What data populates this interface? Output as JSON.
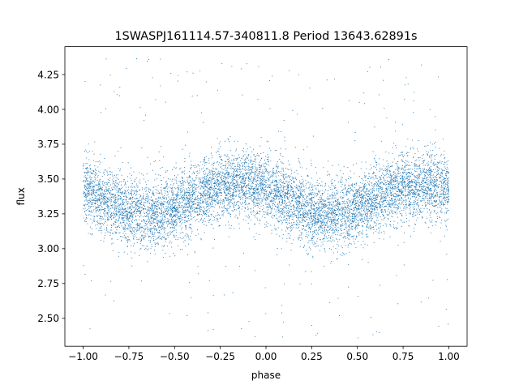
{
  "chart_data": {
    "type": "scatter",
    "title": "1SWASPJ161114.57-340811.8 Period 13643.62891s",
    "xlabel": "phase",
    "ylabel": "flux",
    "xlim": [
      -1.1,
      1.1
    ],
    "ylim": [
      2.3,
      4.45
    ],
    "x_ticks": [
      -1.0,
      -0.75,
      -0.5,
      -0.25,
      0.0,
      0.25,
      0.5,
      0.75,
      1.0
    ],
    "x_tick_labels": [
      "−1.00",
      "−0.75",
      "−0.50",
      "−0.25",
      "0.00",
      "0.25",
      "0.50",
      "0.75",
      "1.00"
    ],
    "y_ticks": [
      2.5,
      2.75,
      3.0,
      3.25,
      3.5,
      3.75,
      4.0,
      4.25
    ],
    "y_tick_labels": [
      "2.50",
      "2.75",
      "3.00",
      "3.25",
      "3.50",
      "3.75",
      "4.00",
      "4.25"
    ],
    "grid": false,
    "point_color": "#1f77b4",
    "series": [
      {
        "x_range": [
          -1.0,
          1.0
        ],
        "model": {
          "mean_flux": 3.36,
          "amplitude": 0.11,
          "max_phase": -0.15,
          "min_phase": -0.6,
          "min_phase_2": 0.4,
          "scatter_sd": 0.12,
          "outlier_range": [
            2.35,
            4.4
          ]
        }
      }
    ]
  }
}
